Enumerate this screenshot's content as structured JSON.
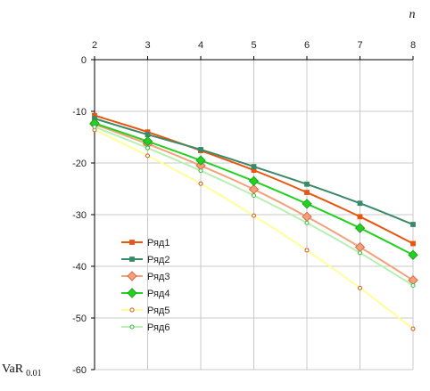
{
  "chart_data": {
    "type": "line",
    "xlabel": "n",
    "ylabel": "VaR",
    "ylabel_subscript": "0.01",
    "x": [
      2,
      3,
      4,
      5,
      6,
      7,
      8
    ],
    "xlim": [
      2,
      8
    ],
    "ylim": [
      -60,
      0
    ],
    "y_ticks": [
      0,
      -10,
      -20,
      -30,
      -40,
      -50,
      -60
    ],
    "x_axis_position": "top",
    "grid": true,
    "legend_position": "left",
    "series": [
      {
        "name": "Ряд1",
        "color": "#e8550f",
        "marker": "square",
        "values": [
          -10.8,
          -14.0,
          -17.6,
          -21.4,
          -25.7,
          -30.4,
          -35.6
        ]
      },
      {
        "name": "Ряд2",
        "color": "#3a8a68",
        "marker": "square",
        "values": [
          -11.4,
          -14.5,
          -17.4,
          -20.7,
          -24.1,
          -27.8,
          -31.9
        ]
      },
      {
        "name": "Ряд3",
        "color": "#f4a07a",
        "marker": "diamond",
        "values": [
          -12.5,
          -16.3,
          -20.5,
          -25.1,
          -30.4,
          -36.3,
          -42.7
        ]
      },
      {
        "name": "Ряд4",
        "color": "#22d122",
        "marker": "diamond",
        "values": [
          -12.3,
          -15.8,
          -19.5,
          -23.5,
          -27.9,
          -32.6,
          -37.8
        ]
      },
      {
        "name": "Ряд5",
        "color": "#ffff99",
        "marker": "circle",
        "marker_color": "#d0561a",
        "values": [
          -13.6,
          -18.6,
          -24.0,
          -30.2,
          -36.9,
          -44.2,
          -52.1
        ]
      },
      {
        "name": "Ряд6",
        "color": "#b7f0b0",
        "marker": "circle",
        "marker_color": "#3cb83c",
        "values": [
          -13.0,
          -17.1,
          -21.5,
          -26.3,
          -31.6,
          -37.4,
          -43.7
        ]
      }
    ]
  }
}
